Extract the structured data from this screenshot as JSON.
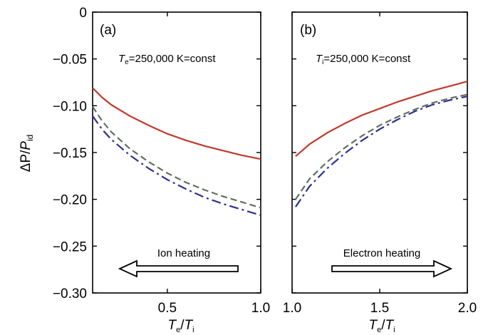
{
  "chart_data": [
    {
      "type": "line",
      "panel_label": "(a)",
      "annotation": {
        "T": "T",
        "sub": "e",
        "rest": "=250,000 K=const"
      },
      "arrow_text": "Ion heating",
      "arrow_direction": "left",
      "xlabel": {
        "T1": "T",
        "s1": "e",
        "slash": "/",
        "T2": "T",
        "s2": "i"
      },
      "ylabel": {
        "delta": "ΔP",
        "slash": "/",
        "P": "P",
        "sub": "id"
      },
      "xlim": [
        0.1,
        1.0
      ],
      "ylim": [
        -0.3,
        0
      ],
      "xticks": [
        0.5,
        1.0
      ],
      "xtick_labels": [
        "0.5",
        "1.0"
      ],
      "yticks": [
        0,
        -0.05,
        -0.1,
        -0.15,
        -0.2,
        -0.25,
        -0.3
      ],
      "ytick_labels": [
        "0",
        "−0.05",
        "−0.10",
        "−0.15",
        "−0.20",
        "−0.25",
        "−0.30"
      ],
      "series": [
        {
          "style": "solid",
          "color": "#c0392b",
          "x": [
            0.1,
            0.15,
            0.2,
            0.3,
            0.4,
            0.5,
            0.6,
            0.7,
            0.8,
            0.9,
            1.0
          ],
          "y": [
            -0.081,
            -0.091,
            -0.099,
            -0.111,
            -0.121,
            -0.13,
            -0.137,
            -0.143,
            -0.148,
            -0.153,
            -0.157
          ]
        },
        {
          "style": "dashed",
          "color": "#607060",
          "x": [
            0.1,
            0.15,
            0.2,
            0.3,
            0.4,
            0.5,
            0.6,
            0.7,
            0.8,
            0.9,
            1.0
          ],
          "y": [
            -0.101,
            -0.116,
            -0.128,
            -0.146,
            -0.16,
            -0.172,
            -0.182,
            -0.19,
            -0.197,
            -0.203,
            -0.209
          ]
        },
        {
          "style": "dashdot",
          "color": "#2e2f8f",
          "x": [
            0.1,
            0.15,
            0.2,
            0.3,
            0.4,
            0.5,
            0.6,
            0.7,
            0.8,
            0.9,
            1.0
          ],
          "y": [
            -0.111,
            -0.125,
            -0.136,
            -0.153,
            -0.167,
            -0.179,
            -0.189,
            -0.198,
            -0.205,
            -0.211,
            -0.217
          ]
        }
      ]
    },
    {
      "type": "line",
      "panel_label": "(b)",
      "annotation": {
        "T": "T",
        "sub": "i",
        "rest": "=250,000 K=const"
      },
      "arrow_text": "Electron heating",
      "arrow_direction": "right",
      "xlabel": {
        "T1": "T",
        "s1": "e",
        "slash": "/",
        "T2": "T",
        "s2": "i"
      },
      "xlim": [
        1.0,
        2.0
      ],
      "ylim": [
        -0.3,
        0
      ],
      "xticks": [
        1.0,
        1.5,
        2.0
      ],
      "xtick_labels": [
        "1.0",
        "1.5",
        "2.0"
      ],
      "series": [
        {
          "style": "solid",
          "color": "#c0392b",
          "x": [
            1.02,
            1.1,
            1.2,
            1.3,
            1.4,
            1.5,
            1.6,
            1.7,
            1.8,
            1.9,
            2.0
          ],
          "y": [
            -0.154,
            -0.141,
            -0.129,
            -0.119,
            -0.11,
            -0.103,
            -0.096,
            -0.09,
            -0.084,
            -0.079,
            -0.074
          ]
        },
        {
          "style": "dashed",
          "color": "#607060",
          "x": [
            1.02,
            1.1,
            1.2,
            1.3,
            1.4,
            1.5,
            1.6,
            1.7,
            1.8,
            1.9,
            2.0
          ],
          "y": [
            -0.2,
            -0.178,
            -0.16,
            -0.145,
            -0.132,
            -0.121,
            -0.112,
            -0.104,
            -0.097,
            -0.092,
            -0.088
          ]
        },
        {
          "style": "dashdot",
          "color": "#2e2f8f",
          "x": [
            1.02,
            1.1,
            1.2,
            1.3,
            1.4,
            1.5,
            1.6,
            1.7,
            1.8,
            1.9,
            2.0
          ],
          "y": [
            -0.208,
            -0.186,
            -0.167,
            -0.151,
            -0.137,
            -0.125,
            -0.115,
            -0.106,
            -0.099,
            -0.094,
            -0.09
          ]
        }
      ]
    }
  ]
}
